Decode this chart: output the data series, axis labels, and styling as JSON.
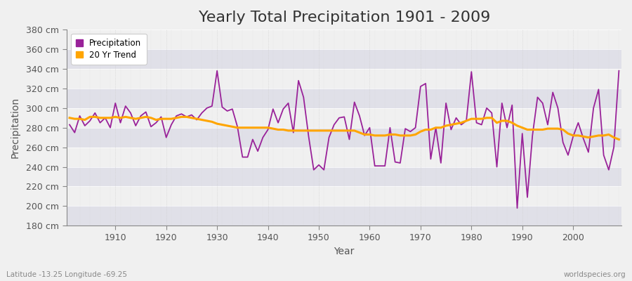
{
  "title": "Yearly Total Precipitation 1901 - 2009",
  "xlabel": "Year",
  "ylabel": "Precipitation",
  "lat_lon_label": "Latitude -13.25 Longitude -69.25",
  "watermark": "worldspecies.org",
  "years": [
    1901,
    1902,
    1903,
    1904,
    1905,
    1906,
    1907,
    1908,
    1909,
    1910,
    1911,
    1912,
    1913,
    1914,
    1915,
    1916,
    1917,
    1918,
    1919,
    1920,
    1921,
    1922,
    1923,
    1924,
    1925,
    1926,
    1927,
    1928,
    1929,
    1930,
    1931,
    1932,
    1933,
    1934,
    1935,
    1936,
    1937,
    1938,
    1939,
    1940,
    1941,
    1942,
    1943,
    1944,
    1945,
    1946,
    1947,
    1948,
    1949,
    1950,
    1951,
    1952,
    1953,
    1954,
    1955,
    1956,
    1957,
    1958,
    1959,
    1960,
    1961,
    1962,
    1963,
    1964,
    1965,
    1966,
    1967,
    1968,
    1969,
    1970,
    1971,
    1972,
    1973,
    1974,
    1975,
    1976,
    1977,
    1978,
    1979,
    1980,
    1981,
    1982,
    1983,
    1984,
    1985,
    1986,
    1987,
    1988,
    1989,
    1990,
    1991,
    1992,
    1993,
    1994,
    1995,
    1996,
    1997,
    1998,
    1999,
    2000,
    2001,
    2002,
    2003,
    2004,
    2005,
    2006,
    2007,
    2008,
    2009
  ],
  "precipitation": [
    283,
    275,
    292,
    282,
    287,
    295,
    285,
    290,
    280,
    305,
    285,
    302,
    295,
    282,
    292,
    296,
    281,
    285,
    291,
    270,
    283,
    292,
    294,
    291,
    293,
    288,
    295,
    300,
    302,
    338,
    301,
    297,
    299,
    281,
    250,
    250,
    268,
    256,
    270,
    278,
    299,
    285,
    299,
    305,
    275,
    328,
    311,
    271,
    237,
    242,
    237,
    270,
    283,
    290,
    291,
    268,
    306,
    292,
    272,
    280,
    241,
    241,
    241,
    280,
    245,
    244,
    279,
    276,
    280,
    322,
    325,
    248,
    280,
    244,
    305,
    278,
    290,
    283,
    287,
    337,
    285,
    283,
    300,
    295,
    240,
    305,
    280,
    303,
    198,
    274,
    209,
    272,
    311,
    305,
    283,
    316,
    300,
    265,
    252,
    271,
    285,
    269,
    255,
    300,
    319,
    252,
    237,
    260,
    338
  ],
  "trend": [
    290,
    289,
    289,
    288,
    291,
    291,
    290,
    290,
    290,
    291,
    290,
    291,
    290,
    289,
    290,
    291,
    290,
    288,
    289,
    289,
    289,
    290,
    291,
    291,
    290,
    289,
    288,
    287,
    286,
    284,
    283,
    282,
    281,
    280,
    280,
    280,
    280,
    280,
    280,
    280,
    279,
    278,
    278,
    277,
    277,
    277,
    277,
    277,
    277,
    277,
    277,
    277,
    277,
    277,
    277,
    277,
    277,
    275,
    273,
    273,
    272,
    272,
    272,
    273,
    273,
    272,
    272,
    272,
    273,
    276,
    278,
    278,
    280,
    280,
    282,
    283,
    284,
    285,
    287,
    289,
    289,
    289,
    290,
    290,
    285,
    287,
    287,
    285,
    282,
    280,
    278,
    278,
    278,
    278,
    279,
    279,
    279,
    278,
    274,
    272,
    272,
    271,
    270,
    271,
    272,
    272,
    273,
    270,
    268
  ],
  "precip_color": "#992299",
  "trend_color": "#FFA500",
  "fig_bg_color": "#F0F0F0",
  "plot_bg_color_light": "#F0F0F0",
  "plot_bg_color_dark": "#E0E0E8",
  "ylim": [
    180,
    380
  ],
  "ytick_step": 20,
  "xlim_min": 1901,
  "xlim_max": 2009,
  "title_fontsize": 16,
  "axis_label_fontsize": 10,
  "tick_fontsize": 9,
  "legend_entries": [
    "Precipitation",
    "20 Yr Trend"
  ]
}
